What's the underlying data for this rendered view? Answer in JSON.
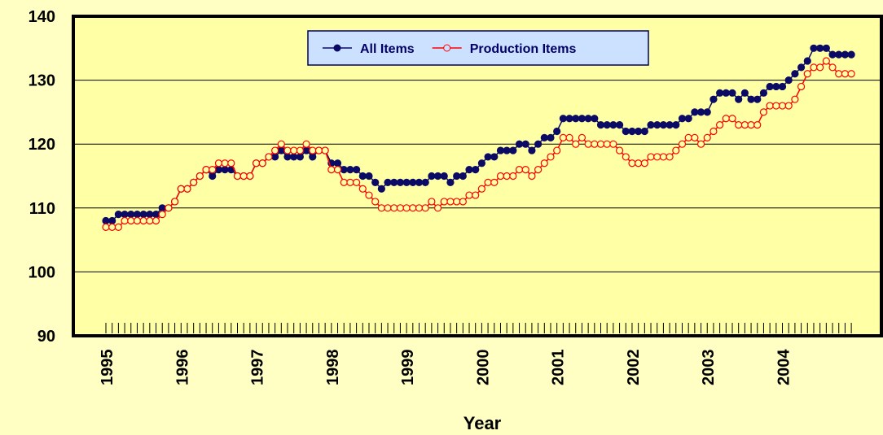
{
  "chart_data": {
    "type": "line",
    "x_label": "Year",
    "categories": [
      "1995",
      null,
      null,
      null,
      null,
      null,
      null,
      null,
      null,
      null,
      null,
      null,
      "1996",
      null,
      null,
      null,
      null,
      null,
      null,
      null,
      null,
      null,
      null,
      null,
      "1997",
      null,
      null,
      null,
      null,
      null,
      null,
      null,
      null,
      null,
      null,
      null,
      "1998",
      null,
      null,
      null,
      null,
      null,
      null,
      null,
      null,
      null,
      null,
      null,
      "1999",
      null,
      null,
      null,
      null,
      null,
      null,
      null,
      null,
      null,
      null,
      null,
      "2000",
      null,
      null,
      null,
      null,
      null,
      null,
      null,
      null,
      null,
      null,
      null,
      "2001",
      null,
      null,
      null,
      null,
      null,
      null,
      null,
      null,
      null,
      null,
      null,
      "2002",
      null,
      null,
      null,
      null,
      null,
      null,
      null,
      null,
      null,
      null,
      null,
      "2003",
      null,
      null,
      null,
      null,
      null,
      null,
      null,
      null,
      null,
      null,
      null,
      "2004",
      null,
      null,
      null,
      null,
      null,
      null,
      null,
      null,
      null,
      null,
      null
    ],
    "series": [
      {
        "name": "All Items",
        "color": "#0b0b66",
        "marker": "filled",
        "values": [
          108,
          108,
          109,
          109,
          109,
          109,
          109,
          109,
          109,
          110,
          110,
          111,
          113,
          113,
          114,
          115,
          116,
          115,
          116,
          116,
          116,
          115,
          115,
          115,
          117,
          117,
          118,
          118,
          119,
          118,
          118,
          118,
          119,
          118,
          119,
          119,
          117,
          117,
          116,
          116,
          116,
          115,
          115,
          114,
          113,
          114,
          114,
          114,
          114,
          114,
          114,
          114,
          115,
          115,
          115,
          114,
          115,
          115,
          116,
          116,
          117,
          118,
          118,
          119,
          119,
          119,
          120,
          120,
          119,
          120,
          121,
          121,
          122,
          124,
          124,
          124,
          124,
          124,
          124,
          123,
          123,
          123,
          123,
          122,
          122,
          122,
          122,
          123,
          123,
          123,
          123,
          123,
          124,
          124,
          125,
          125,
          125,
          127,
          128,
          128,
          128,
          127,
          128,
          127,
          127,
          128,
          129,
          129,
          129,
          130,
          131,
          132,
          133,
          135,
          135,
          135,
          134,
          134,
          134,
          134
        ]
      },
      {
        "name": "Production Items",
        "color": "#ff0000",
        "marker": "hollow",
        "values": [
          107,
          107,
          107,
          108,
          108,
          108,
          108,
          108,
          108,
          109,
          110,
          111,
          113,
          113,
          114,
          115,
          116,
          116,
          117,
          117,
          117,
          115,
          115,
          115,
          117,
          117,
          118,
          119,
          120,
          119,
          119,
          119,
          120,
          119,
          119,
          119,
          116,
          116,
          114,
          114,
          114,
          113,
          112,
          111,
          110,
          110,
          110,
          110,
          110,
          110,
          110,
          110,
          111,
          110,
          111,
          111,
          111,
          111,
          112,
          112,
          113,
          114,
          114,
          115,
          115,
          115,
          116,
          116,
          115,
          116,
          117,
          118,
          119,
          121,
          121,
          120,
          121,
          120,
          120,
          120,
          120,
          120,
          119,
          118,
          117,
          117,
          117,
          118,
          118,
          118,
          118,
          119,
          120,
          121,
          121,
          120,
          121,
          122,
          123,
          124,
          124,
          123,
          123,
          123,
          123,
          125,
          126,
          126,
          126,
          126,
          127,
          129,
          131,
          132,
          132,
          133,
          132,
          131,
          131,
          131
        ]
      }
    ],
    "ylim": [
      90,
      140
    ],
    "yticks": [
      90,
      100,
      110,
      120,
      130,
      140
    ],
    "grid": true,
    "legend": "upper center"
  }
}
